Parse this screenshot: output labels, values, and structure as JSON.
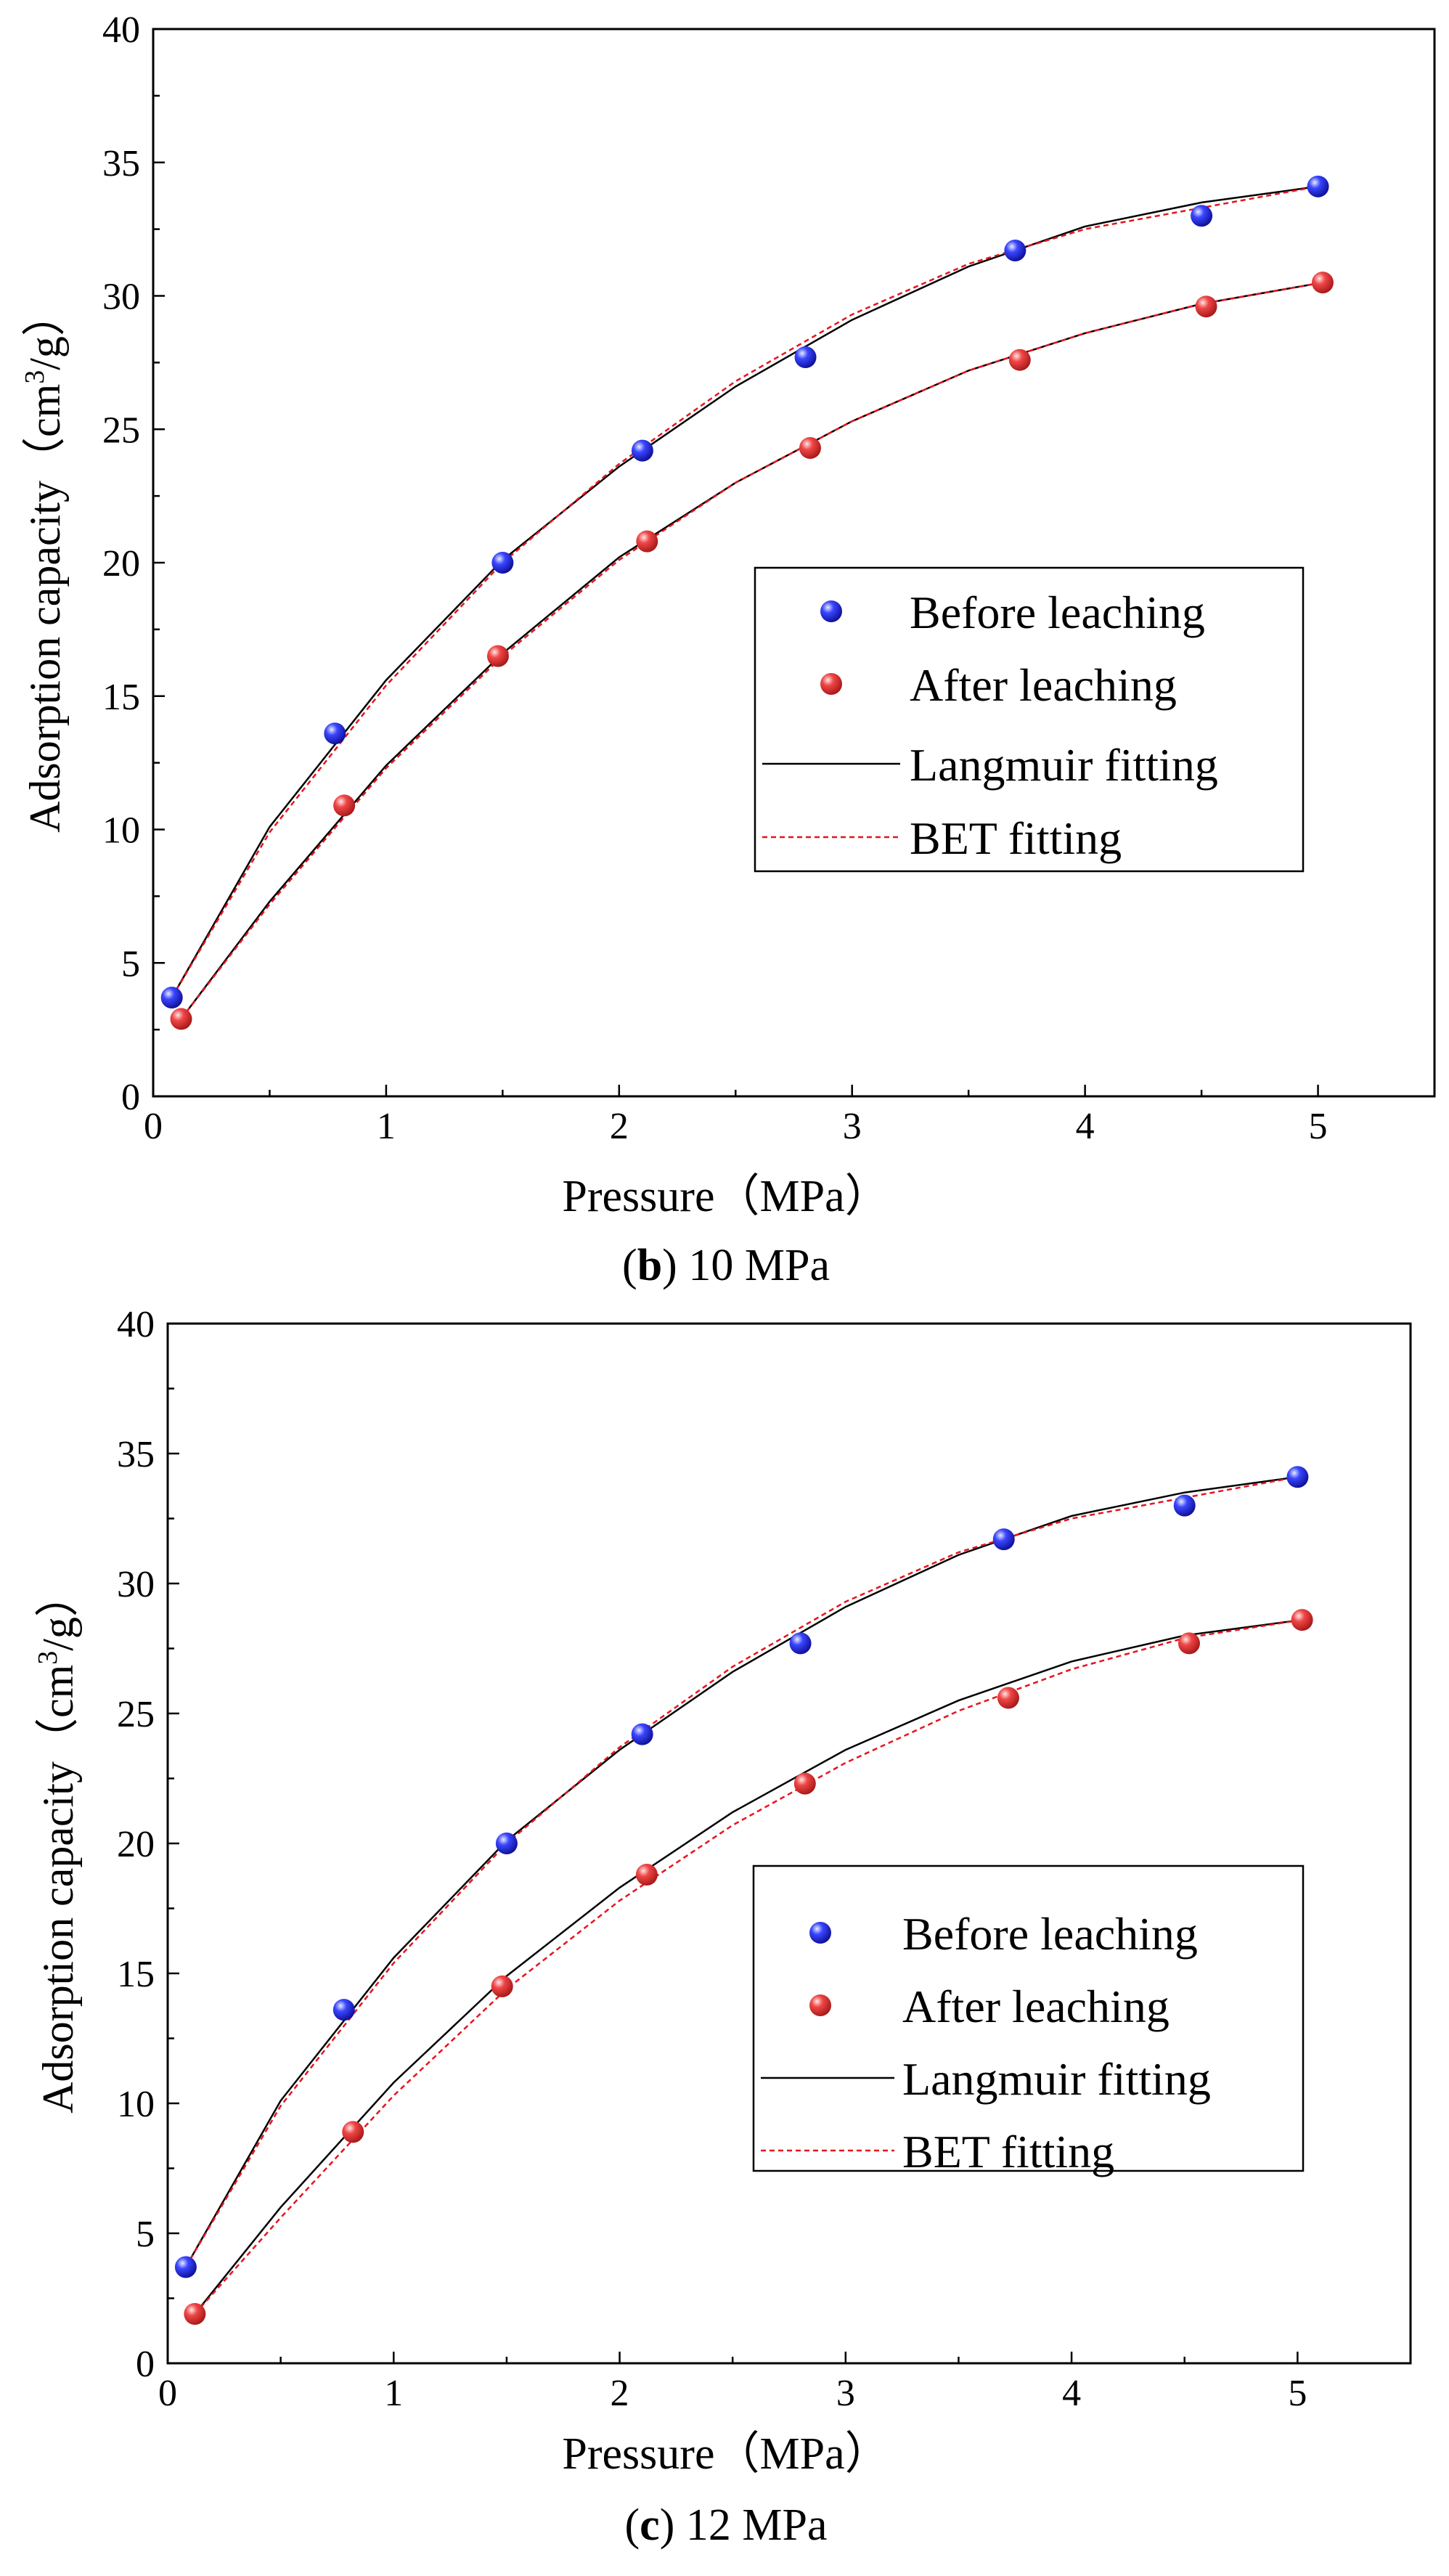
{
  "chart_data": [
    {
      "type": "scatter",
      "id": "b",
      "caption_letter": "b",
      "caption_text": " 10 MPa",
      "xlabel": "Pressure（MPa）",
      "ylabel_main": "Adsorption capacity（cm",
      "ylabel_sup": "3",
      "ylabel_end": "/g）",
      "xlim": [
        0,
        5.5
      ],
      "ylim": [
        0,
        40
      ],
      "xticks": [
        0,
        1,
        2,
        3,
        4,
        5
      ],
      "yticks": [
        0,
        5,
        10,
        15,
        20,
        25,
        30,
        35,
        40
      ],
      "legend_position": "center-right",
      "series": [
        {
          "name": "Before leaching",
          "kind": "points",
          "color": "#1414e6",
          "x": [
            0.08,
            0.78,
            1.5,
            2.1,
            2.8,
            3.7,
            4.5,
            5.0
          ],
          "y": [
            3.7,
            13.6,
            20.0,
            24.2,
            27.7,
            31.7,
            33.0,
            34.1
          ]
        },
        {
          "name": "After leaching",
          "kind": "points",
          "color": "#e63232",
          "x": [
            0.12,
            0.82,
            1.48,
            2.12,
            2.82,
            3.72,
            4.52,
            5.02
          ],
          "y": [
            2.9,
            10.9,
            16.5,
            20.8,
            24.3,
            27.6,
            29.6,
            30.5
          ]
        },
        {
          "name": "Langmuir fitting",
          "kind": "curve",
          "color": "#000000",
          "dash": "none",
          "x": [
            0.08,
            0.5,
            1.0,
            1.5,
            2.0,
            2.5,
            3.0,
            3.5,
            4.0,
            4.5,
            5.0
          ],
          "y": [
            3.7,
            10.1,
            15.6,
            20.1,
            23.6,
            26.6,
            29.1,
            31.1,
            32.6,
            33.5,
            34.1
          ]
        },
        {
          "name": "BET fitting",
          "kind": "curve",
          "color": "#e6141e",
          "dash": "7,5",
          "x": [
            0.08,
            0.5,
            1.0,
            1.5,
            2.0,
            2.5,
            3.0,
            3.5,
            4.0,
            4.5,
            5.0
          ],
          "y": [
            3.7,
            9.9,
            15.4,
            20.0,
            23.7,
            26.8,
            29.3,
            31.2,
            32.5,
            33.3,
            34.1
          ]
        },
        {
          "name": "",
          "kind": "curve",
          "color": "#000000",
          "dash": "none",
          "x": [
            0.12,
            0.5,
            1.0,
            1.5,
            2.0,
            2.5,
            3.0,
            3.5,
            4.0,
            4.5,
            5.02
          ],
          "y": [
            2.9,
            7.3,
            12.4,
            16.6,
            20.2,
            23.0,
            25.3,
            27.2,
            28.6,
            29.7,
            30.5
          ]
        },
        {
          "name": "",
          "kind": "curve",
          "color": "#e6141e",
          "dash": "7,5",
          "x": [
            0.12,
            0.5,
            1.0,
            1.5,
            2.0,
            2.5,
            3.0,
            3.5,
            4.0,
            4.5,
            5.02
          ],
          "y": [
            2.9,
            7.2,
            12.3,
            16.5,
            20.1,
            23.0,
            25.3,
            27.2,
            28.6,
            29.7,
            30.5
          ]
        }
      ]
    },
    {
      "type": "scatter",
      "id": "c",
      "caption_letter": "c",
      "caption_text": " 12 MPa",
      "xlabel": "Pressure（MPa）",
      "ylabel_main": "Adsorption capacity（cm",
      "ylabel_sup": "3",
      "ylabel_end": "/g）",
      "xlim": [
        0,
        5.5
      ],
      "ylim": [
        0,
        40
      ],
      "xticks": [
        0,
        1,
        2,
        3,
        4,
        5
      ],
      "yticks": [
        0,
        5,
        10,
        15,
        20,
        25,
        30,
        35,
        40
      ],
      "legend_position": "center-right",
      "series": [
        {
          "name": "Before leaching",
          "kind": "points",
          "color": "#1414e6",
          "x": [
            0.08,
            0.78,
            1.5,
            2.1,
            2.8,
            3.7,
            4.5,
            5.0
          ],
          "y": [
            3.7,
            13.6,
            20.0,
            24.2,
            27.7,
            31.7,
            33.0,
            34.1
          ]
        },
        {
          "name": "After leaching",
          "kind": "points",
          "color": "#e63232",
          "x": [
            0.12,
            0.82,
            1.48,
            2.12,
            2.82,
            3.72,
            4.52,
            5.02
          ],
          "y": [
            1.9,
            8.9,
            14.5,
            18.8,
            22.3,
            25.6,
            27.7,
            28.6
          ]
        },
        {
          "name": "Langmuir fitting",
          "kind": "curve",
          "color": "#000000",
          "dash": "none",
          "x": [
            0.08,
            0.5,
            1.0,
            1.5,
            2.0,
            2.5,
            3.0,
            3.5,
            4.0,
            4.5,
            5.0
          ],
          "y": [
            3.7,
            10.1,
            15.6,
            20.1,
            23.6,
            26.6,
            29.1,
            31.1,
            32.6,
            33.5,
            34.1
          ]
        },
        {
          "name": "BET fitting",
          "kind": "curve",
          "color": "#e6141e",
          "dash": "7,5",
          "x": [
            0.08,
            0.5,
            1.0,
            1.5,
            2.0,
            2.5,
            3.0,
            3.5,
            4.0,
            4.5,
            5.0
          ],
          "y": [
            3.7,
            9.9,
            15.4,
            20.0,
            23.7,
            26.8,
            29.3,
            31.2,
            32.5,
            33.3,
            34.1
          ]
        },
        {
          "name": "",
          "kind": "curve",
          "color": "#000000",
          "dash": "none",
          "x": [
            0.12,
            0.5,
            1.0,
            1.5,
            2.0,
            2.5,
            3.0,
            3.5,
            4.0,
            4.5,
            5.02
          ],
          "y": [
            1.9,
            6.0,
            10.8,
            14.9,
            18.3,
            21.2,
            23.6,
            25.5,
            27.0,
            28.0,
            28.6
          ]
        },
        {
          "name": "",
          "kind": "curve",
          "color": "#e6141e",
          "dash": "7,5",
          "x": [
            0.12,
            0.5,
            1.0,
            1.5,
            2.0,
            2.5,
            3.0,
            3.5,
            4.0,
            4.5,
            5.02
          ],
          "y": [
            1.9,
            5.6,
            10.3,
            14.4,
            17.8,
            20.7,
            23.1,
            25.1,
            26.7,
            27.9,
            28.6
          ]
        }
      ]
    }
  ]
}
